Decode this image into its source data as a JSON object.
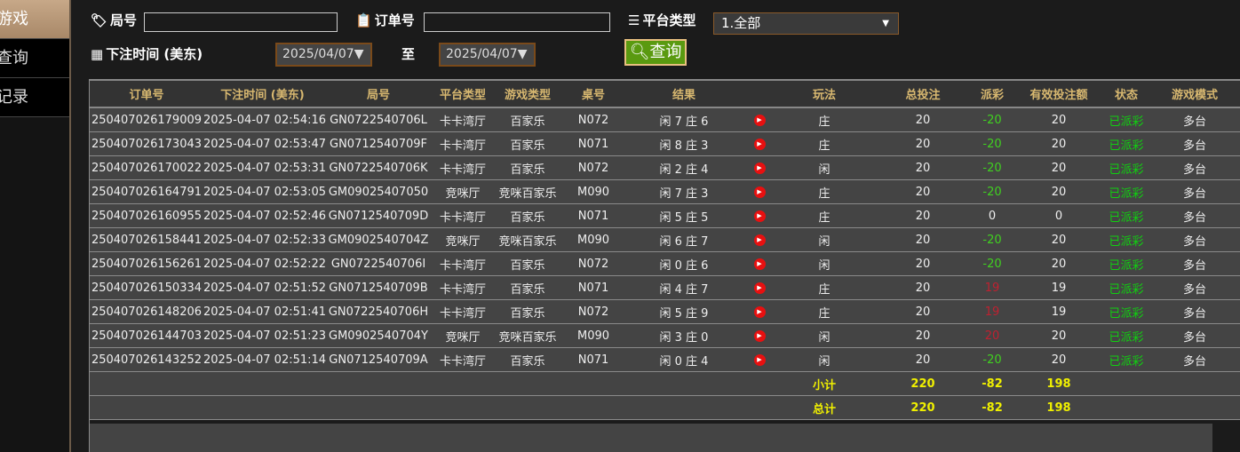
{
  "sidebar": {
    "items": [
      {
        "label": "游戏",
        "active": true
      },
      {
        "label": "查询"
      },
      {
        "label": "记录"
      }
    ]
  },
  "filters": {
    "round_label": "局号",
    "round_value": "",
    "order_label": "订单号",
    "order_value": "",
    "platform_label": "平台类型",
    "platform_value": "1.全部",
    "time_label": "下注时间 (美东)",
    "date_from": "2025/04/07",
    "to_label": "至",
    "date_to": "2025/04/07",
    "query_button": "查询"
  },
  "table": {
    "headers": [
      "订单号",
      "下注时间 (美东)",
      "局号",
      "平台类型",
      "游戏类型",
      "桌号",
      "结果",
      "",
      "玩法",
      "总投注",
      "派彩",
      "有效投注额",
      "状态",
      "游戏模式"
    ],
    "rows": [
      [
        "250407026179009",
        "2025-04-07 02:54:16",
        "GN0722540706L",
        "卡卡湾厅",
        "百家乐",
        "N072",
        "闲 7 庄 6",
        "",
        "庄",
        "20",
        "-20",
        "20",
        "已派彩",
        "多台"
      ],
      [
        "250407026173043",
        "2025-04-07 02:53:47",
        "GN0712540709F",
        "卡卡湾厅",
        "百家乐",
        "N071",
        "闲 8 庄 3",
        "",
        "庄",
        "20",
        "-20",
        "20",
        "已派彩",
        "多台"
      ],
      [
        "250407026170022",
        "2025-04-07 02:53:31",
        "GN0722540706K",
        "卡卡湾厅",
        "百家乐",
        "N072",
        "闲 2 庄 4",
        "",
        "闲",
        "20",
        "-20",
        "20",
        "已派彩",
        "多台"
      ],
      [
        "250407026164791",
        "2025-04-07 02:53:05",
        "GM09025407050",
        "竞咪厅",
        "竞咪百家乐",
        "M090",
        "闲 7 庄 3",
        "",
        "庄",
        "20",
        "-20",
        "20",
        "已派彩",
        "多台"
      ],
      [
        "250407026160955",
        "2025-04-07 02:52:46",
        "GN0712540709D",
        "卡卡湾厅",
        "百家乐",
        "N071",
        "闲 5 庄 5",
        "",
        "庄",
        "20",
        "0",
        "0",
        "已派彩",
        "多台"
      ],
      [
        "250407026158441",
        "2025-04-07 02:52:33",
        "GM0902540704Z",
        "竞咪厅",
        "竞咪百家乐",
        "M090",
        "闲 6 庄 7",
        "",
        "闲",
        "20",
        "-20",
        "20",
        "已派彩",
        "多台"
      ],
      [
        "250407026156261",
        "2025-04-07 02:52:22",
        "GN0722540706I",
        "卡卡湾厅",
        "百家乐",
        "N072",
        "闲 0 庄 6",
        "",
        "闲",
        "20",
        "-20",
        "20",
        "已派彩",
        "多台"
      ],
      [
        "250407026150334",
        "2025-04-07 02:51:52",
        "GN0712540709B",
        "卡卡湾厅",
        "百家乐",
        "N071",
        "闲 4 庄 7",
        "",
        "庄",
        "20",
        "19",
        "19",
        "已派彩",
        "多台"
      ],
      [
        "250407026148206",
        "2025-04-07 02:51:41",
        "GN0722540706H",
        "卡卡湾厅",
        "百家乐",
        "N072",
        "闲 5 庄 9",
        "",
        "庄",
        "20",
        "19",
        "19",
        "已派彩",
        "多台"
      ],
      [
        "250407026144703",
        "2025-04-07 02:51:23",
        "GM0902540704Y",
        "竞咪厅",
        "竞咪百家乐",
        "M090",
        "闲 3 庄 0",
        "",
        "闲",
        "20",
        "20",
        "20",
        "已派彩",
        "多台"
      ],
      [
        "250407026143252",
        "2025-04-07 02:51:14",
        "GN0712540709A",
        "卡卡湾厅",
        "百家乐",
        "N071",
        "闲 0 庄 4",
        "",
        "闲",
        "20",
        "-20",
        "20",
        "已派彩",
        "多台"
      ]
    ],
    "subtotal": {
      "label": "小计",
      "total_bet": "220",
      "payout": "-82",
      "valid_bet": "198"
    },
    "total": {
      "label": "总计",
      "total_bet": "220",
      "payout": "-82",
      "valid_bet": "198"
    }
  },
  "colors": {
    "win": "#c02030",
    "loss": "#40d020",
    "status": "#10d010",
    "summary": "#f0f000",
    "header": "#d8b870"
  }
}
